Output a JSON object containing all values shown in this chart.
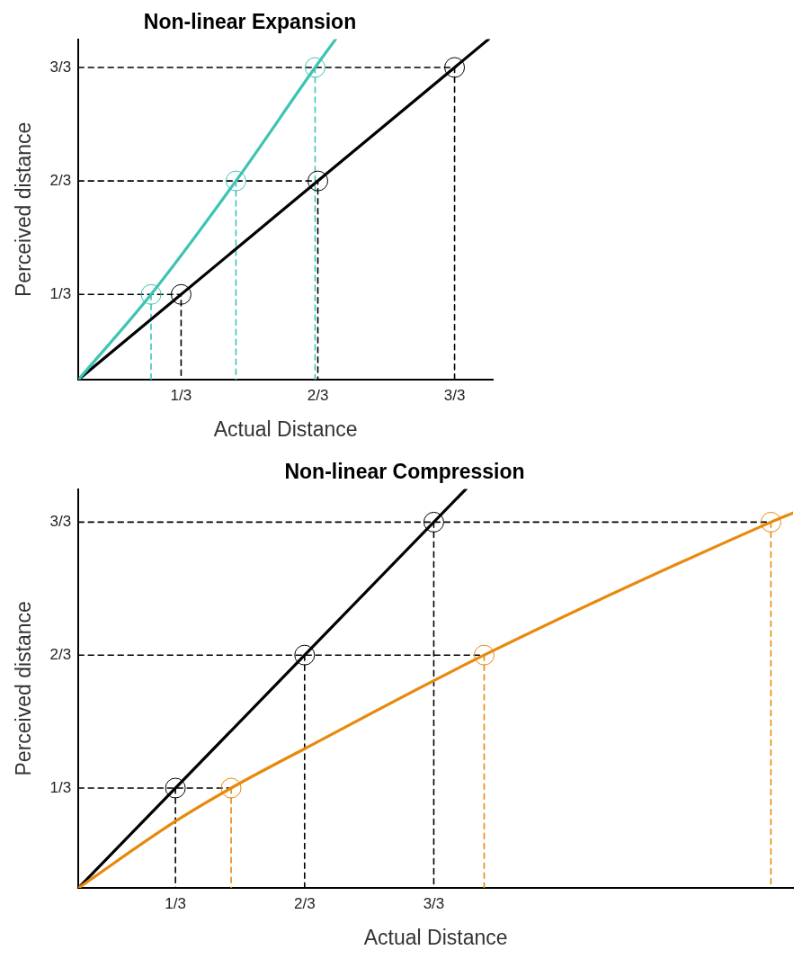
{
  "chart_data": [
    {
      "type": "line",
      "title": "Non-linear Expansion",
      "xlabel": "Actual Distance",
      "ylabel": "Perceived distance",
      "xlim": [
        0.083,
        1.093
      ],
      "ylim": [
        0.083,
        1.083
      ],
      "xticks": [
        {
          "value": 0.3333,
          "label": "1/3"
        },
        {
          "value": 0.6667,
          "label": "2/3"
        },
        {
          "value": 1,
          "label": "3/3"
        }
      ],
      "yticks": [
        {
          "value": 0.3333,
          "label": "1/3"
        },
        {
          "value": 0.6667,
          "label": "2/3"
        },
        {
          "value": 1,
          "label": "3/3"
        }
      ],
      "grid": false,
      "legend": false,
      "series": [
        {
          "color": "#000000",
          "line_style": "dashed",
          "marker": "none",
          "x": [
            0.083,
            0.3333,
            0.3333
          ],
          "values": [
            0.3333,
            0.3333,
            0.083
          ]
        },
        {
          "color": "#000000",
          "line_style": "dashed",
          "marker": "none",
          "x": [
            0.083,
            0.6667,
            0.6667
          ],
          "values": [
            0.6667,
            0.6667,
            0.083
          ]
        },
        {
          "color": "#000000",
          "line_style": "dashed",
          "marker": "none",
          "x": [
            0.083,
            1,
            1
          ],
          "values": [
            1,
            1,
            0.083
          ]
        },
        {
          "color": "#3cc4b4",
          "line_style": "dashed",
          "marker": "none",
          "x": [
            0.26,
            0.26
          ],
          "values": [
            0.3333,
            0.083
          ]
        },
        {
          "color": "#3cc4b4",
          "line_style": "dashed",
          "marker": "none",
          "x": [
            0.467,
            0.467
          ],
          "values": [
            0.6667,
            0.083
          ]
        },
        {
          "color": "#3cc4b4",
          "line_style": "dashed",
          "marker": "none",
          "x": [
            0.66,
            0.66
          ],
          "values": [
            1,
            0.083
          ]
        },
        {
          "color": "#000000",
          "line_style": "solid",
          "marker": "none",
          "x": [
            0.083,
            1.083
          ],
          "values": [
            0.083,
            1.083
          ]
        },
        {
          "color": "#3cc4b4",
          "line_style": "solid",
          "marker": "none",
          "x": [
            0.083,
            0.26,
            0.467,
            0.66,
            0.71
          ],
          "values": [
            0.083,
            0.3333,
            0.6667,
            1,
            1.083
          ]
        },
        {
          "type": "scatter",
          "color": "#000000",
          "marker": "circle",
          "x": [
            0.3333,
            0.6667,
            1
          ],
          "values": [
            0.3333,
            0.6667,
            1
          ]
        },
        {
          "type": "scatter",
          "color": "#3cc4b4",
          "marker": "circle",
          "x": [
            0.26,
            0.467,
            0.66
          ],
          "values": [
            0.3333,
            0.6667,
            1
          ]
        }
      ]
    },
    {
      "type": "line",
      "title": "Non-linear Compression",
      "xlabel": "Actual Distance",
      "ylabel": "Perceived distance",
      "xlim": [
        0.083,
        1.927
      ],
      "ylim": [
        0.083,
        1.083
      ],
      "xticks": [
        {
          "value": 0.3333,
          "label": "1/3"
        },
        {
          "value": 0.6667,
          "label": "2/3"
        },
        {
          "value": 1,
          "label": "3/3"
        }
      ],
      "yticks": [
        {
          "value": 0.3333,
          "label": "1/3"
        },
        {
          "value": 0.6667,
          "label": "2/3"
        },
        {
          "value": 1,
          "label": "3/3"
        }
      ],
      "grid": false,
      "legend": false,
      "series": [
        {
          "color": "#000000",
          "line_style": "dashed",
          "marker": "none",
          "x": [
            0.083,
            0.477
          ],
          "values": [
            0.3333,
            0.3333
          ]
        },
        {
          "color": "#000000",
          "line_style": "dashed",
          "marker": "none",
          "x": [
            0.083,
            1.13
          ],
          "values": [
            0.6667,
            0.6667
          ]
        },
        {
          "color": "#000000",
          "line_style": "dashed",
          "marker": "none",
          "x": [
            0.083,
            1.87
          ],
          "values": [
            1,
            1
          ]
        },
        {
          "color": "#000000",
          "line_style": "dashed",
          "marker": "none",
          "x": [
            0.3333,
            0.3333
          ],
          "values": [
            0.3333,
            0.083
          ]
        },
        {
          "color": "#000000",
          "line_style": "dashed",
          "marker": "none",
          "x": [
            0.6667,
            0.6667
          ],
          "values": [
            0.6667,
            0.083
          ]
        },
        {
          "color": "#000000",
          "line_style": "dashed",
          "marker": "none",
          "x": [
            1,
            1
          ],
          "values": [
            1,
            0.083
          ]
        },
        {
          "color": "#e8890c",
          "line_style": "dashed",
          "marker": "none",
          "x": [
            0.477,
            0.477
          ],
          "values": [
            0.3333,
            0.083
          ]
        },
        {
          "color": "#e8890c",
          "line_style": "dashed",
          "marker": "none",
          "x": [
            1.13,
            1.13
          ],
          "values": [
            0.6667,
            0.083
          ]
        },
        {
          "color": "#e8890c",
          "line_style": "dashed",
          "marker": "none",
          "x": [
            1.87,
            1.87
          ],
          "values": [
            1,
            0.083
          ]
        },
        {
          "color": "#000000",
          "line_style": "solid",
          "marker": "none",
          "x": [
            0.083,
            1.083
          ],
          "values": [
            0.083,
            1.083
          ]
        },
        {
          "color": "#e8890c",
          "line_style": "solid",
          "marker": "none",
          "x": [
            0.083,
            0.3333,
            0.477,
            0.6667,
            1.13,
            1.87,
            1.927
          ],
          "values": [
            0.083,
            0.25,
            0.3333,
            0.432,
            0.6667,
            1,
            1.023
          ]
        },
        {
          "type": "scatter",
          "color": "#000000",
          "marker": "circle",
          "x": [
            0.3333,
            0.6667,
            1
          ],
          "values": [
            0.3333,
            0.6667,
            1
          ]
        },
        {
          "type": "scatter",
          "color": "#e8890c",
          "marker": "circle",
          "x": [
            0.477,
            1.13,
            1.87
          ],
          "values": [
            0.3333,
            0.6667,
            1
          ]
        }
      ]
    }
  ]
}
